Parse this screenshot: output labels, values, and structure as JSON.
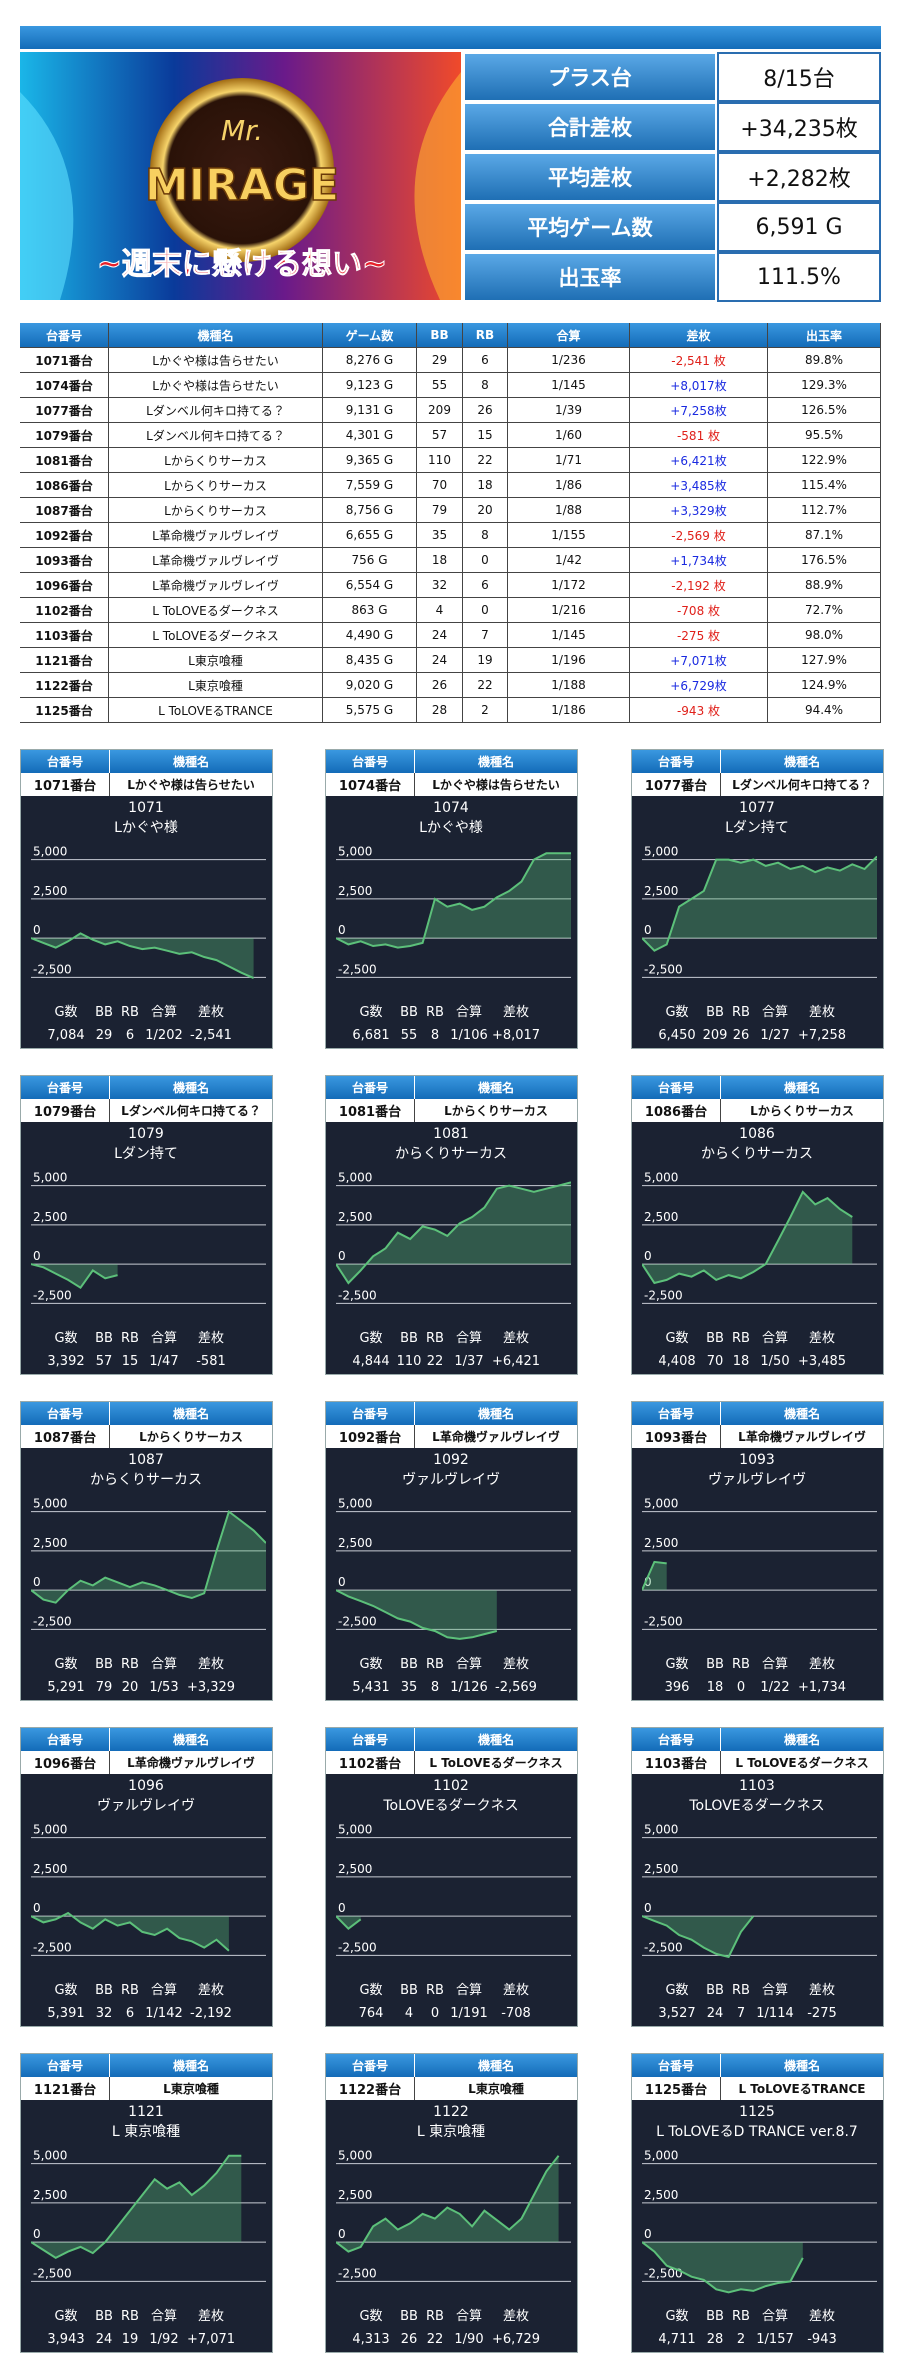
{
  "banner": {
    "logo_prefix": "Mr.",
    "logo": "MIRAGE",
    "slogan": "~週末に懸ける想い~"
  },
  "summary": [
    [
      "プラス台",
      "8/15台"
    ],
    [
      "合計差枚",
      "+34,235枚"
    ],
    [
      "平均差枚",
      "+2,282枚"
    ],
    [
      "平均ゲーム数",
      "6,591 G"
    ],
    [
      "出玉率",
      "111.5%"
    ]
  ],
  "table": {
    "header": [
      "台番号",
      "機種名",
      "ゲーム数",
      "BB",
      "RB",
      "合算",
      "差枚",
      "出玉率"
    ],
    "rows": [
      [
        "1071番台",
        "Lかぐや様は告らせたい",
        "8,276 G",
        "29",
        "6",
        "1/236",
        "-2,541 枚",
        "89.8%"
      ],
      [
        "1074番台",
        "Lかぐや様は告らせたい",
        "9,123 G",
        "55",
        "8",
        "1/145",
        "+8,017枚",
        "129.3%"
      ],
      [
        "1077番台",
        "Lダンベル何キロ持てる？",
        "9,131 G",
        "209",
        "26",
        "1/39",
        "+7,258枚",
        "126.5%"
      ],
      [
        "1079番台",
        "Lダンベル何キロ持てる？",
        "4,301 G",
        "57",
        "15",
        "1/60",
        "-581 枚",
        "95.5%"
      ],
      [
        "1081番台",
        "Lからくりサーカス",
        "9,365 G",
        "110",
        "22",
        "1/71",
        "+6,421枚",
        "122.9%"
      ],
      [
        "1086番台",
        "Lからくりサーカス",
        "7,559 G",
        "70",
        "18",
        "1/86",
        "+3,485枚",
        "115.4%"
      ],
      [
        "1087番台",
        "Lからくりサーカス",
        "8,756 G",
        "79",
        "20",
        "1/88",
        "+3,329枚",
        "112.7%"
      ],
      [
        "1092番台",
        "L革命機ヴァルヴレイヴ",
        "6,655 G",
        "35",
        "8",
        "1/155",
        "-2,569 枚",
        "87.1%"
      ],
      [
        "1093番台",
        "L革命機ヴァルヴレイヴ",
        "756 G",
        "18",
        "0",
        "1/42",
        "+1,734枚",
        "176.5%"
      ],
      [
        "1096番台",
        "L革命機ヴァルヴレイヴ",
        "6,554 G",
        "32",
        "6",
        "1/172",
        "-2,192 枚",
        "88.9%"
      ],
      [
        "1102番台",
        "L ToLOVEるダークネス",
        "863 G",
        "4",
        "0",
        "1/216",
        "-708 枚",
        "72.7%"
      ],
      [
        "1103番台",
        "L ToLOVEるダークネス",
        "4,490 G",
        "24",
        "7",
        "1/145",
        "-275 枚",
        "98.0%"
      ],
      [
        "1121番台",
        "L東京喰種",
        "8,435 G",
        "24",
        "19",
        "1/196",
        "+7,071枚",
        "127.9%"
      ],
      [
        "1122番台",
        "L東京喰種",
        "9,020 G",
        "26",
        "22",
        "1/188",
        "+6,729枚",
        "124.9%"
      ],
      [
        "1125番台",
        "L ToLOVEるTRANCE",
        "5,575 G",
        "28",
        "2",
        "1/186",
        "-943 枚",
        "94.4%"
      ]
    ]
  },
  "card_labels": {
    "header": [
      "台番号",
      "機種名"
    ],
    "stats": [
      "G数",
      "BB",
      "RB",
      "合算",
      "差枚"
    ]
  },
  "card_chart": {
    "type": "line",
    "color": "#5cc07a",
    "ylim": [
      -3300,
      5800
    ],
    "yticks": [
      {
        "value": -2500,
        "label": "-2,500"
      },
      0,
      {
        "value": 2500,
        "label": "2,500"
      },
      {
        "value": 5000,
        "label": "5,000"
      }
    ]
  },
  "cards": [
    {
      "number": "1071番台",
      "name": "Lかぐや様は告らせたい",
      "title": "1071",
      "subtitle": "Lかぐや様",
      "stats": [
        "7,084",
        "29",
        "6",
        "1/202",
        "-2,541"
      ],
      "values": [
        0,
        -300,
        -600,
        -200,
        300,
        -100,
        -400,
        -200,
        -500,
        -700,
        -600,
        -800,
        -1000,
        -900,
        -1200,
        -1400,
        -1800,
        -2200,
        -2541,
        null
      ]
    },
    {
      "number": "1074番台",
      "name": "Lかぐや様は告らせたい",
      "title": "1074",
      "subtitle": "Lかぐや様",
      "stats": [
        "6,681",
        "55",
        "8",
        "1/106",
        "+8,017"
      ],
      "values": [
        0,
        -400,
        -200,
        -500,
        -400,
        -600,
        -500,
        -300,
        2500,
        2000,
        2200,
        1800,
        2000,
        2600,
        3000,
        3600,
        5000,
        5400,
        5400,
        5400
      ]
    },
    {
      "number": "1077番台",
      "name": "Lダンベル何キロ持てる？",
      "title": "1077",
      "subtitle": "Lダン持て",
      "stats": [
        "6,450",
        "209",
        "26",
        "1/27",
        "+7,258"
      ],
      "values": [
        0,
        -800,
        -400,
        2000,
        2500,
        3000,
        5000,
        5000,
        4800,
        5000,
        4600,
        4800,
        4400,
        4600,
        4200,
        4500,
        4300,
        4700,
        4400,
        5200
      ]
    },
    {
      "number": "1079番台",
      "name": "Lダンベル何キロ持てる？",
      "title": "1079",
      "subtitle": "Lダン持て",
      "stats": [
        "3,392",
        "57",
        "15",
        "1/47",
        "-581"
      ],
      "values": [
        0,
        -200,
        -600,
        -1000,
        -1500,
        -400,
        -900,
        -700,
        null,
        null,
        null,
        null,
        null,
        null,
        null,
        null,
        null,
        null,
        null,
        null
      ]
    },
    {
      "number": "1081番台",
      "name": "Lからくりサーカス",
      "title": "1081",
      "subtitle": "からくりサーカス",
      "stats": [
        "4,844",
        "110",
        "22",
        "1/37",
        "+6,421"
      ],
      "values": [
        0,
        -1200,
        -400,
        500,
        1000,
        2000,
        1600,
        2400,
        2200,
        1800,
        2600,
        3000,
        3600,
        4800,
        5000,
        4800,
        4600,
        4800,
        5000,
        5200
      ]
    },
    {
      "number": "1086番台",
      "name": "Lからくりサーカス",
      "title": "1086",
      "subtitle": "からくりサーカス",
      "stats": [
        "4,408",
        "70",
        "18",
        "1/50",
        "+3,485"
      ],
      "values": [
        0,
        -1200,
        -1000,
        -600,
        -800,
        -400,
        -1000,
        -700,
        -900,
        -500,
        0,
        1500,
        3000,
        4600,
        3800,
        4200,
        3500,
        3000,
        null,
        null
      ]
    },
    {
      "number": "1087番台",
      "name": "Lからくりサーカス",
      "title": "1087",
      "subtitle": "からくりサーカス",
      "stats": [
        "5,291",
        "79",
        "20",
        "1/53",
        "+3,329"
      ],
      "values": [
        0,
        -600,
        -800,
        0,
        600,
        300,
        800,
        500,
        200,
        500,
        300,
        0,
        -300,
        -500,
        -200,
        2500,
        5000,
        4400,
        3800,
        3000
      ]
    },
    {
      "number": "1092番台",
      "name": "L革命機ヴァルヴレイヴ",
      "title": "1092",
      "subtitle": "ヴァルヴレイヴ",
      "stats": [
        "5,431",
        "35",
        "8",
        "1/126",
        "-2,569"
      ],
      "values": [
        0,
        -400,
        -700,
        -1000,
        -1400,
        -1800,
        -2000,
        -2400,
        -2600,
        -3000,
        -3100,
        -3000,
        -2800,
        -2600,
        null,
        null,
        null,
        null,
        null,
        null
      ]
    },
    {
      "number": "1093番台",
      "name": "L革命機ヴァルヴレイヴ",
      "title": "1093",
      "subtitle": "ヴァルヴレイヴ",
      "stats": [
        "396",
        "18",
        "0",
        "1/22",
        "+1,734"
      ],
      "values": [
        0,
        1800,
        1700,
        null,
        null,
        null,
        null,
        null,
        null,
        null,
        null,
        null,
        null,
        null,
        null,
        null,
        null,
        null,
        null,
        null
      ]
    },
    {
      "number": "1096番台",
      "name": "L革命機ヴァルヴレイヴ",
      "title": "1096",
      "subtitle": "ヴァルヴレイヴ",
      "stats": [
        "5,391",
        "32",
        "6",
        "1/142",
        "-2,192"
      ],
      "values": [
        0,
        -400,
        -200,
        200,
        -400,
        -800,
        -200,
        -600,
        -400,
        -1000,
        -1200,
        -800,
        -1400,
        -1600,
        -2000,
        -1500,
        -2200,
        null,
        null,
        null
      ]
    },
    {
      "number": "1102番台",
      "name": "L ToLOVEるダークネス",
      "title": "1102",
      "subtitle": "ToLOVEるダークネス",
      "stats": [
        "764",
        "4",
        "0",
        "1/191",
        "-708"
      ],
      "values": [
        0,
        -800,
        -200,
        null,
        null,
        null,
        null,
        null,
        null,
        null,
        null,
        null,
        null,
        null,
        null,
        null,
        null,
        null,
        null,
        null
      ]
    },
    {
      "number": "1103番台",
      "name": "L ToLOVEるダークネス",
      "title": "1103",
      "subtitle": "ToLOVEるダークネス",
      "stats": [
        "3,527",
        "24",
        "7",
        "1/114",
        "-275"
      ],
      "values": [
        0,
        -300,
        -600,
        -1200,
        -1500,
        -2000,
        -2400,
        -2600,
        -1000,
        0,
        null,
        null,
        null,
        null,
        null,
        null,
        null,
        null,
        null,
        null
      ]
    },
    {
      "number": "1121番台",
      "name": "L東京喰種",
      "title": "1121",
      "subtitle": "L 東京喰種",
      "stats": [
        "3,943",
        "24",
        "19",
        "1/92",
        "+7,071"
      ],
      "values": [
        0,
        -500,
        -1000,
        -600,
        -300,
        -700,
        0,
        1000,
        2000,
        3000,
        4000,
        3400,
        3800,
        3000,
        3600,
        4400,
        5500,
        5500,
        null,
        null
      ]
    },
    {
      "number": "1122番台",
      "name": "L東京喰種",
      "title": "1122",
      "subtitle": "L 東京喰種",
      "stats": [
        "4,313",
        "26",
        "22",
        "1/90",
        "+6,729"
      ],
      "values": [
        0,
        -600,
        -300,
        1000,
        1500,
        800,
        1200,
        1800,
        1500,
        2200,
        1800,
        1000,
        2000,
        1400,
        800,
        1500,
        3000,
        4500,
        5500,
        null
      ]
    },
    {
      "number": "1125番台",
      "name": "L ToLOVEるTRANCE",
      "title": "1125",
      "subtitle": "L ToLOVEるD TRANCE ver.8.7",
      "stats": [
        "4,711",
        "28",
        "2",
        "1/157",
        "-943"
      ],
      "values": [
        0,
        -600,
        -1500,
        -1800,
        -2200,
        -2400,
        -3000,
        -3200,
        -3000,
        -3100,
        -2800,
        -2600,
        -2500,
        -1000,
        null,
        null,
        null,
        null,
        null,
        null
      ]
    }
  ]
}
